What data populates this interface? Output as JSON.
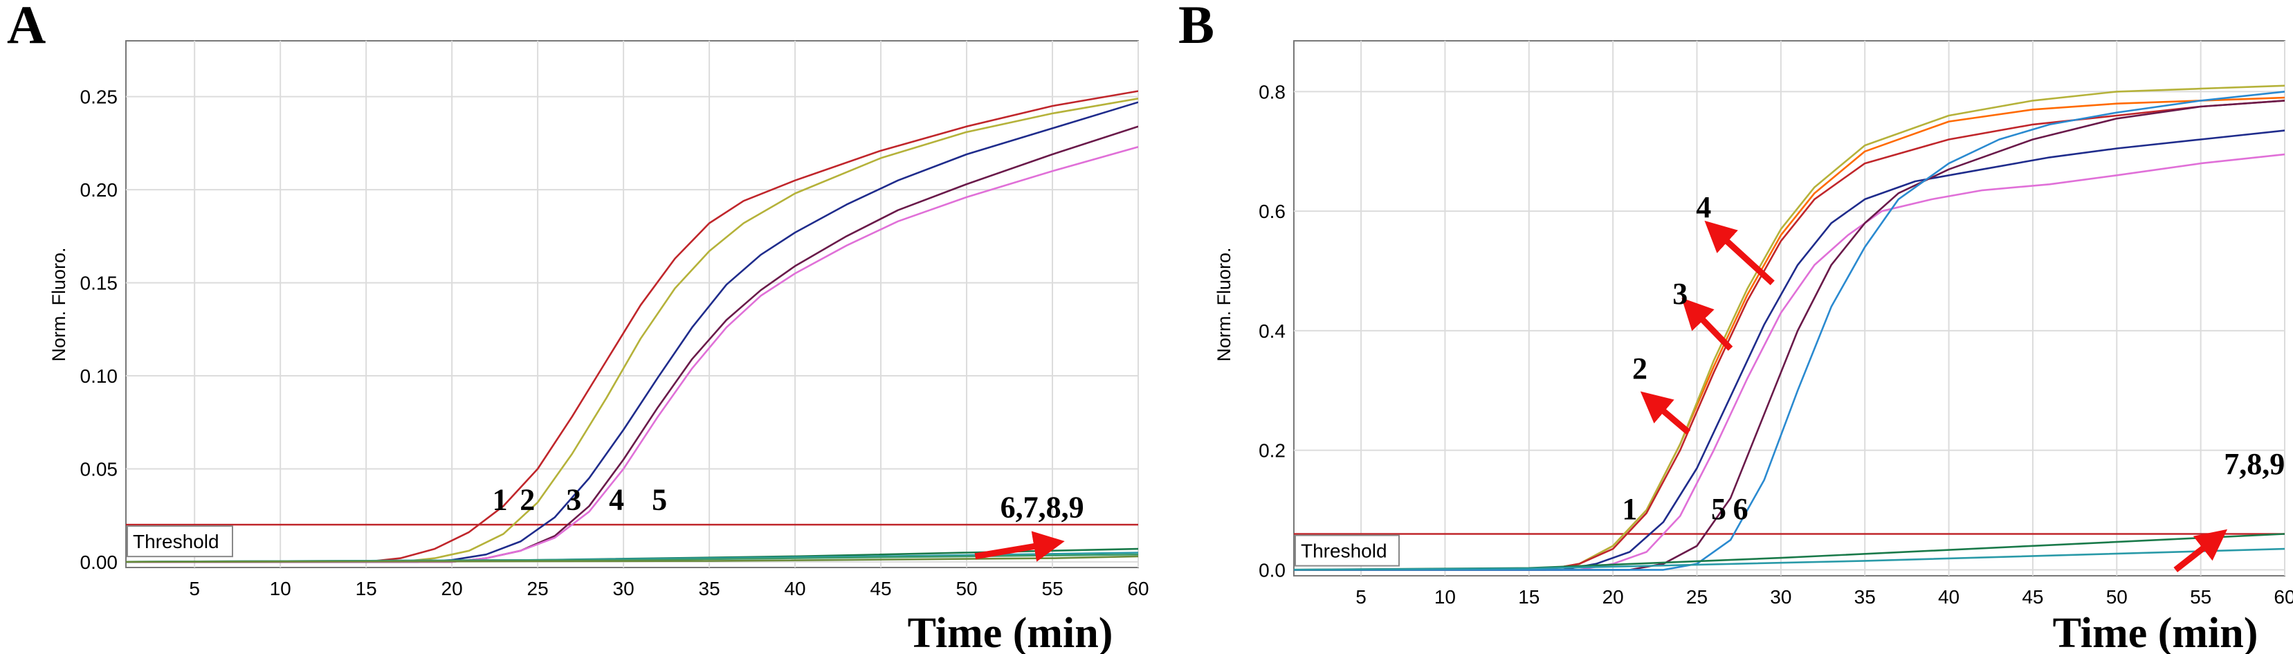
{
  "chart_data": [
    {
      "panel": "A",
      "type": "line",
      "xlabel": "Time (min)",
      "ylabel": "Norm. Fluoro.",
      "xlim": [
        1,
        60
      ],
      "ylim": [
        -0.003,
        0.28
      ],
      "xticks": [
        5,
        10,
        15,
        20,
        25,
        30,
        35,
        40,
        45,
        50,
        55,
        60
      ],
      "yticks": [
        0.0,
        0.05,
        0.1,
        0.15,
        0.2,
        0.25
      ],
      "ytick_labels": [
        "0.00",
        "0.05",
        "0.10",
        "0.15",
        "0.20",
        "0.25"
      ],
      "grid": true,
      "threshold": {
        "label": "Threshold",
        "value": 0.02,
        "color": "#c0262b"
      },
      "series": [
        {
          "name": "1",
          "color": "#c0262b",
          "x": [
            0,
            15,
            17,
            19,
            21,
            23,
            25,
            27,
            29,
            31,
            33,
            35,
            37,
            40,
            45,
            50,
            55,
            60
          ],
          "y": [
            0,
            0,
            0.002,
            0.007,
            0.016,
            0.03,
            0.05,
            0.078,
            0.108,
            0.138,
            0.163,
            0.182,
            0.194,
            0.205,
            0.221,
            0.234,
            0.245,
            0.253
          ]
        },
        {
          "name": "2",
          "color": "#b5b23a",
          "x": [
            0,
            17,
            19,
            21,
            23,
            25,
            27,
            29,
            31,
            33,
            35,
            37,
            40,
            45,
            50,
            55,
            60
          ],
          "y": [
            0,
            0,
            0.002,
            0.006,
            0.015,
            0.032,
            0.058,
            0.088,
            0.12,
            0.147,
            0.167,
            0.182,
            0.198,
            0.217,
            0.231,
            0.241,
            0.249
          ]
        },
        {
          "name": "3",
          "color": "#1f2c8c",
          "x": [
            0,
            18,
            20,
            22,
            24,
            26,
            28,
            30,
            32,
            34,
            36,
            38,
            40,
            43,
            46,
            50,
            55,
            60
          ],
          "y": [
            0,
            0,
            0.001,
            0.004,
            0.011,
            0.024,
            0.045,
            0.071,
            0.099,
            0.126,
            0.149,
            0.165,
            0.177,
            0.192,
            0.205,
            0.219,
            0.233,
            0.247
          ]
        },
        {
          "name": "4",
          "color": "#6a1a4a",
          "x": [
            0,
            20,
            22,
            24,
            26,
            28,
            30,
            32,
            34,
            36,
            38,
            40,
            43,
            46,
            50,
            55,
            60
          ],
          "y": [
            0,
            0,
            0.002,
            0.006,
            0.014,
            0.03,
            0.055,
            0.083,
            0.109,
            0.13,
            0.146,
            0.159,
            0.175,
            0.189,
            0.203,
            0.219,
            0.234
          ]
        },
        {
          "name": "5",
          "color": "#e070d8",
          "x": [
            0,
            20,
            22,
            24,
            26,
            28,
            30,
            32,
            34,
            36,
            38,
            40,
            43,
            46,
            50,
            55,
            60
          ],
          "y": [
            0,
            0,
            0.002,
            0.006,
            0.013,
            0.027,
            0.05,
            0.078,
            0.104,
            0.126,
            0.143,
            0.155,
            0.17,
            0.183,
            0.196,
            0.21,
            0.223
          ]
        },
        {
          "name": "6",
          "color": "#1a7a4a",
          "x": [
            0,
            25,
            40,
            60
          ],
          "y": [
            0,
            0.001,
            0.003,
            0.007
          ]
        },
        {
          "name": "7",
          "color": "#2a9aa8",
          "x": [
            0,
            25,
            45,
            60
          ],
          "y": [
            0,
            0.001,
            0.003,
            0.005
          ]
        },
        {
          "name": "8",
          "color": "#3a9a6a",
          "x": [
            0,
            30,
            50,
            60
          ],
          "y": [
            0,
            0.001,
            0.003,
            0.004
          ]
        },
        {
          "name": "9",
          "color": "#6a8a3a",
          "x": [
            0,
            35,
            55,
            60
          ],
          "y": [
            0,
            0.0005,
            0.002,
            0.003
          ]
        }
      ],
      "annotations": [
        {
          "text": "1",
          "x": 22.8,
          "y": 0.028
        },
        {
          "text": "2",
          "x": 24.4,
          "y": 0.028
        },
        {
          "text": "3",
          "x": 27.1,
          "y": 0.028
        },
        {
          "text": "4",
          "x": 29.6,
          "y": 0.028
        },
        {
          "text": "5",
          "x": 32.1,
          "y": 0.028
        },
        {
          "text": "6,7,8,9",
          "x": 54.4,
          "y": 0.024
        }
      ],
      "arrows": [
        {
          "from": [
            50.5,
            0.003
          ],
          "to": [
            55.0,
            0.01
          ],
          "color": "#ee1111"
        }
      ]
    },
    {
      "panel": "B",
      "type": "line",
      "xlabel": "Time (min)",
      "ylabel": "Norm. Fluoro.",
      "xlim": [
        1,
        60
      ],
      "ylim": [
        -0.01,
        0.885
      ],
      "xticks": [
        5,
        10,
        15,
        20,
        25,
        30,
        35,
        40,
        45,
        50,
        55,
        60
      ],
      "yticks": [
        0.0,
        0.2,
        0.4,
        0.6,
        0.8
      ],
      "ytick_labels": [
        "0.0",
        "0.2",
        "0.4",
        "0.6",
        "0.8"
      ],
      "grid": true,
      "threshold": {
        "label": "Threshold",
        "value": 0.06,
        "color": "#c0262b"
      },
      "series": [
        {
          "name": "1",
          "color": "#ff6a00",
          "x": [
            0,
            16,
            18,
            20,
            22,
            24,
            26,
            28,
            30,
            32,
            35,
            40,
            45,
            50,
            55,
            60
          ],
          "y": [
            0,
            0,
            0.01,
            0.04,
            0.1,
            0.21,
            0.34,
            0.46,
            0.56,
            0.63,
            0.7,
            0.75,
            0.77,
            0.78,
            0.785,
            0.79
          ]
        },
        {
          "name": "2",
          "color": "#b5b23a",
          "x": [
            0,
            16,
            18,
            20,
            22,
            24,
            26,
            28,
            30,
            32,
            35,
            40,
            45,
            50,
            55,
            60
          ],
          "y": [
            0,
            0,
            0.01,
            0.04,
            0.1,
            0.21,
            0.35,
            0.47,
            0.57,
            0.64,
            0.71,
            0.76,
            0.785,
            0.8,
            0.805,
            0.81
          ]
        },
        {
          "name": "3",
          "color": "#c0262b",
          "x": [
            0,
            16,
            18,
            20,
            22,
            24,
            26,
            28,
            30,
            32,
            35,
            40,
            45,
            50,
            55,
            60
          ],
          "y": [
            0,
            0,
            0.01,
            0.035,
            0.095,
            0.2,
            0.33,
            0.45,
            0.55,
            0.62,
            0.68,
            0.72,
            0.745,
            0.76,
            0.775,
            0.785
          ]
        },
        {
          "name": "4",
          "color": "#1f2c8c",
          "x": [
            0,
            17,
            19,
            21,
            23,
            25,
            27,
            29,
            31,
            33,
            35,
            38,
            42,
            46,
            50,
            55,
            60
          ],
          "y": [
            0,
            0,
            0.01,
            0.03,
            0.08,
            0.17,
            0.29,
            0.41,
            0.51,
            0.58,
            0.62,
            0.65,
            0.67,
            0.69,
            0.705,
            0.72,
            0.735
          ]
        },
        {
          "name": "5",
          "color": "#e070d8",
          "x": [
            0,
            18,
            20,
            22,
            24,
            26,
            28,
            30,
            32,
            34,
            36,
            39,
            42,
            46,
            50,
            55,
            60
          ],
          "y": [
            0,
            0,
            0.01,
            0.03,
            0.09,
            0.2,
            0.32,
            0.43,
            0.51,
            0.56,
            0.6,
            0.62,
            0.635,
            0.645,
            0.66,
            0.68,
            0.695
          ]
        },
        {
          "name": "6",
          "color": "#6a1a4a",
          "x": [
            0,
            21,
            23,
            25,
            27,
            29,
            31,
            33,
            35,
            37,
            40,
            45,
            50,
            55,
            60
          ],
          "y": [
            0,
            0,
            0.01,
            0.04,
            0.12,
            0.26,
            0.4,
            0.51,
            0.58,
            0.63,
            0.67,
            0.72,
            0.755,
            0.775,
            0.785
          ]
        },
        {
          "name": "7",
          "color": "#2a8ad0",
          "x": [
            0,
            23,
            25,
            27,
            29,
            31,
            33,
            35,
            37,
            40,
            43,
            46,
            50,
            55,
            60
          ],
          "y": [
            0,
            0,
            0.01,
            0.05,
            0.15,
            0.3,
            0.44,
            0.54,
            0.62,
            0.68,
            0.72,
            0.745,
            0.765,
            0.785,
            0.8
          ]
        },
        {
          "name": "8",
          "color": "#1a7a4a",
          "x": [
            0,
            15,
            30,
            45,
            60
          ],
          "y": [
            0,
            0.003,
            0.02,
            0.04,
            0.06
          ]
        },
        {
          "name": "9",
          "color": "#2a9aa8",
          "x": [
            0,
            15,
            35,
            60
          ],
          "y": [
            0,
            0.002,
            0.015,
            0.035
          ]
        }
      ],
      "annotations": [
        {
          "text": "1",
          "x": 21.0,
          "y": 0.085
        },
        {
          "text": "2",
          "x": 21.6,
          "y": 0.32
        },
        {
          "text": "3",
          "x": 24.0,
          "y": 0.445
        },
        {
          "text": "4",
          "x": 25.4,
          "y": 0.59
        },
        {
          "text": "5",
          "x": 26.3,
          "y": 0.085
        },
        {
          "text": "6",
          "x": 27.6,
          "y": 0.085
        },
        {
          "text": "7,8,9",
          "x": 58.2,
          "y": 0.16
        }
      ],
      "arrows": [
        {
          "from": [
            24.5,
            0.23
          ],
          "to": [
            22.2,
            0.285
          ],
          "color": "#ee1111"
        },
        {
          "from": [
            27.0,
            0.37
          ],
          "to": [
            24.6,
            0.44
          ],
          "color": "#ee1111"
        },
        {
          "from": [
            29.5,
            0.48
          ],
          "to": [
            26.0,
            0.57
          ],
          "color": "#ee1111"
        },
        {
          "from": [
            53.5,
            0.0
          ],
          "to": [
            56.0,
            0.055
          ],
          "color": "#ee1111"
        }
      ]
    }
  ]
}
